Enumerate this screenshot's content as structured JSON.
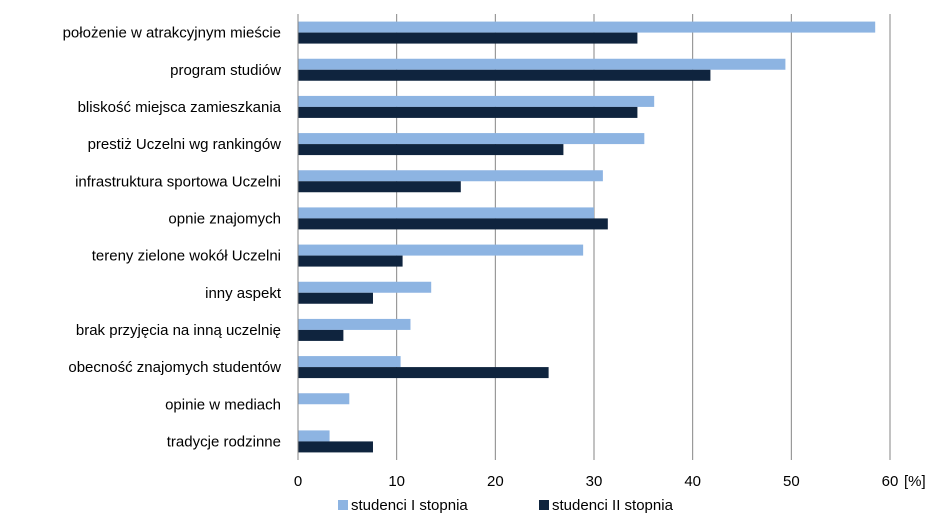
{
  "chart_data": {
    "type": "bar",
    "orientation": "horizontal",
    "categories": [
      "położenie w atrakcyjnym mieście",
      "program studiów",
      "bliskość miejsca zamieszkania",
      "prestiż Uczelni wg rankingów",
      "infrastruktura sportowa Uczelni",
      "opnie znajomych",
      "tereny zielone wokół Uczelni",
      "inny aspekt",
      "brak przyjęcia na inną uczelnię",
      "obecność znajomych studentów",
      "opinie w mediach",
      "tradycje rodzinne"
    ],
    "series": [
      {
        "name": "studenci I stopnia",
        "color": "#8DB4E2",
        "values": [
          58.5,
          49.4,
          36.1,
          35.1,
          30.9,
          30.0,
          28.9,
          13.5,
          11.4,
          10.4,
          5.2,
          3.2
        ]
      },
      {
        "name": "studenci II stopnia",
        "color": "#0F243E",
        "values": [
          34.4,
          41.8,
          34.4,
          26.9,
          16.5,
          31.4,
          10.6,
          7.6,
          4.6,
          25.4,
          0,
          7.6
        ]
      }
    ],
    "xlim": [
      0,
      60
    ],
    "xticks": [
      "0",
      "10",
      "20",
      "30",
      "40",
      "50",
      "60"
    ],
    "xunit": "[%]",
    "grid": true,
    "legend_position": "bottom"
  }
}
